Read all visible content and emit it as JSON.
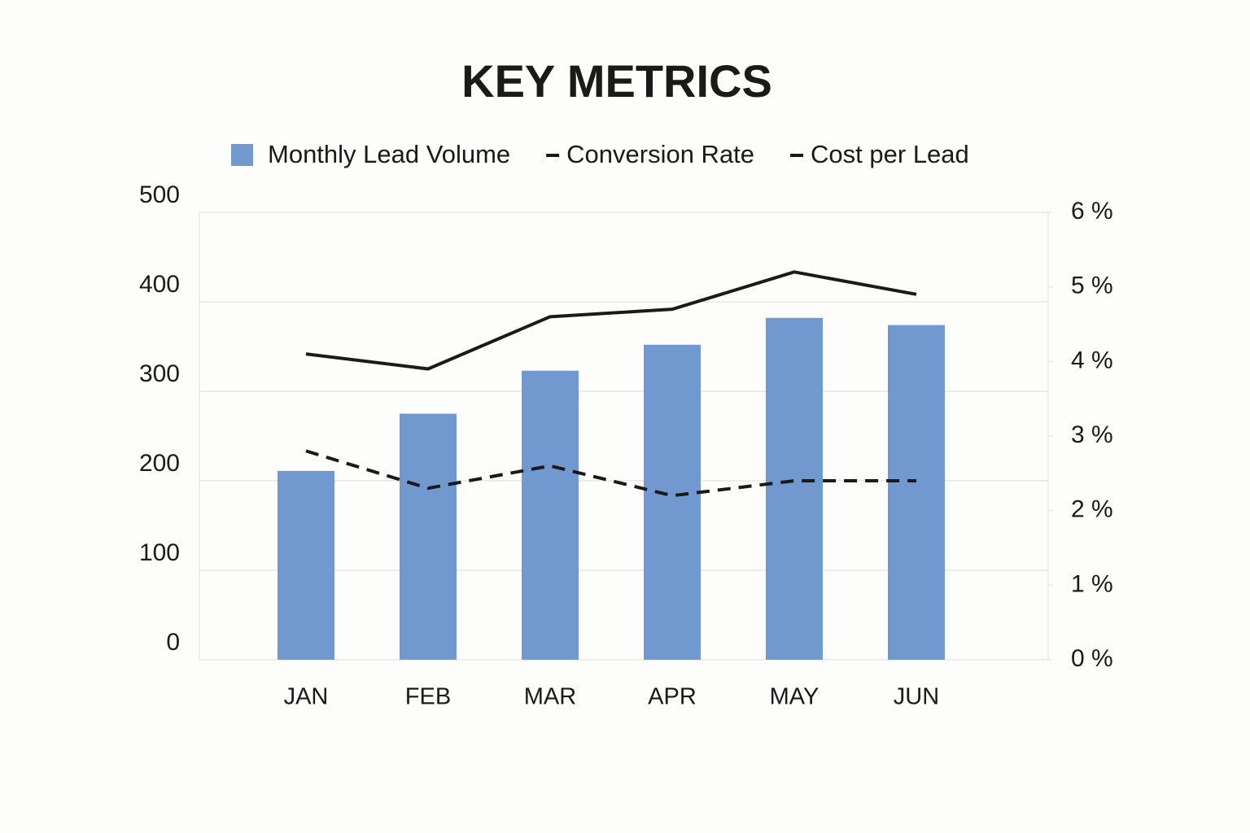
{
  "chart_data": {
    "type": "bar-line",
    "title": "KEY METRICS",
    "categories": [
      "JAN",
      "FEB",
      "MAR",
      "APR",
      "MAY",
      "JUN"
    ],
    "series": [
      {
        "name": "Monthly Lead Volume",
        "color": "#7199cf",
        "type": "bar",
        "axis": "y",
        "values": [
          211,
          275,
          323,
          352,
          382,
          374
        ]
      },
      {
        "name": "Conversion Rate",
        "color": "#1a1a1a",
        "type": "line",
        "axis": "y2",
        "dash": "solid",
        "values": [
          4.1,
          3.9,
          4.6,
          4.7,
          5.2,
          4.9
        ]
      },
      {
        "name": "Cost per Lead",
        "color": "#1a1a1a",
        "type": "line",
        "axis": "y2",
        "dash": "dashed",
        "values": [
          2.8,
          2.3,
          2.6,
          2.2,
          2.4,
          2.4
        ]
      }
    ],
    "ylim": [
      0,
      500
    ],
    "yticks": [
      0,
      100,
      200,
      300,
      400,
      500
    ],
    "y2lim": [
      0,
      6
    ],
    "y2ticks": [
      {
        "value": 0,
        "label": "0 %"
      },
      {
        "value": 1,
        "label": "1 %"
      },
      {
        "value": 2,
        "label": "2 %"
      },
      {
        "value": 3,
        "label": "3 %"
      },
      {
        "value": 4,
        "label": "4 %"
      },
      {
        "value": 5,
        "label": "5 %"
      },
      {
        "value": 6,
        "label": "6 %"
      }
    ],
    "grid": true,
    "legend": "top"
  }
}
